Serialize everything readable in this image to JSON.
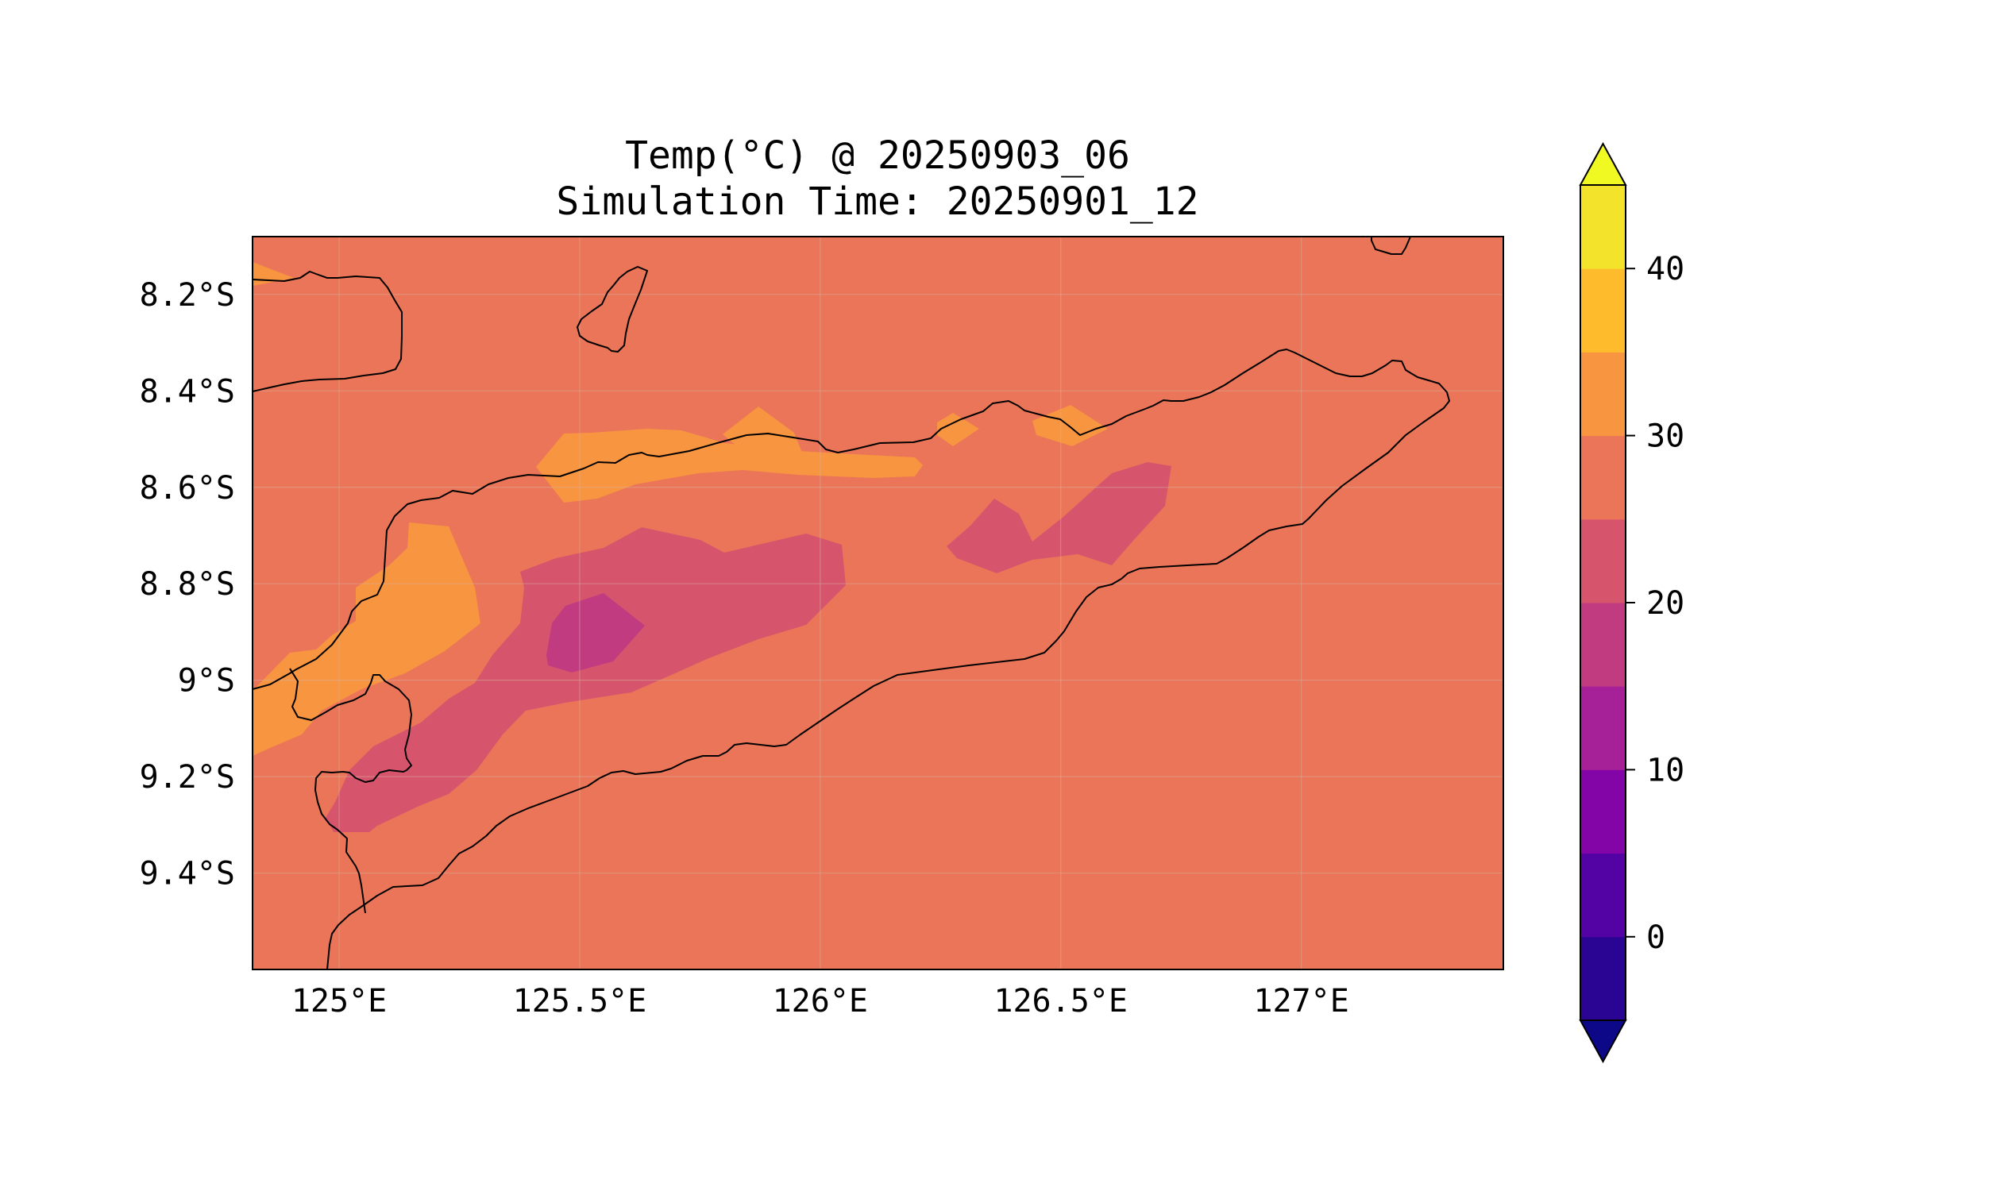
{
  "title": {
    "line1": "Temp(°C) @ 20250903_06",
    "line2": "Simulation Time: 20250901_12"
  },
  "map": {
    "lon_range": [
      124.82,
      127.42
    ],
    "lat_range": [
      -9.6,
      -8.08
    ],
    "x_ticks": [
      {
        "value": 125.0,
        "label": "125°E"
      },
      {
        "value": 125.5,
        "label": "125.5°E"
      },
      {
        "value": 126.0,
        "label": "126°E"
      },
      {
        "value": 126.5,
        "label": "126.5°E"
      },
      {
        "value": 127.0,
        "label": "127°E"
      }
    ],
    "y_ticks": [
      {
        "value": -8.2,
        "label": "8.2°S"
      },
      {
        "value": -8.4,
        "label": "8.4°S"
      },
      {
        "value": -8.6,
        "label": "8.6°S"
      },
      {
        "value": -8.8,
        "label": "8.8°S"
      },
      {
        "value": -9.0,
        "label": "9°S"
      },
      {
        "value": -9.2,
        "label": "9.2°S"
      },
      {
        "value": -9.4,
        "label": "9.4°S"
      }
    ],
    "grid": true,
    "background_band_color": "#eb7558"
  },
  "colorbar": {
    "levels": [
      -5,
      0,
      5,
      10,
      15,
      20,
      25,
      30,
      35,
      40,
      45
    ],
    "colors": [
      "#2a0594",
      "#5302a3",
      "#8405a7",
      "#a62098",
      "#c13b80",
      "#d6556d",
      "#eb7558",
      "#f89540",
      "#febb2c",
      "#f3e32a"
    ],
    "under_color": "#0d0887",
    "over_color": "#f0f921",
    "extend": "both",
    "ticks": [
      {
        "value": 0,
        "label": "0"
      },
      {
        "value": 10,
        "label": "10"
      },
      {
        "value": 20,
        "label": "20"
      },
      {
        "value": 30,
        "label": "30"
      },
      {
        "value": 40,
        "label": "40"
      }
    ]
  }
}
